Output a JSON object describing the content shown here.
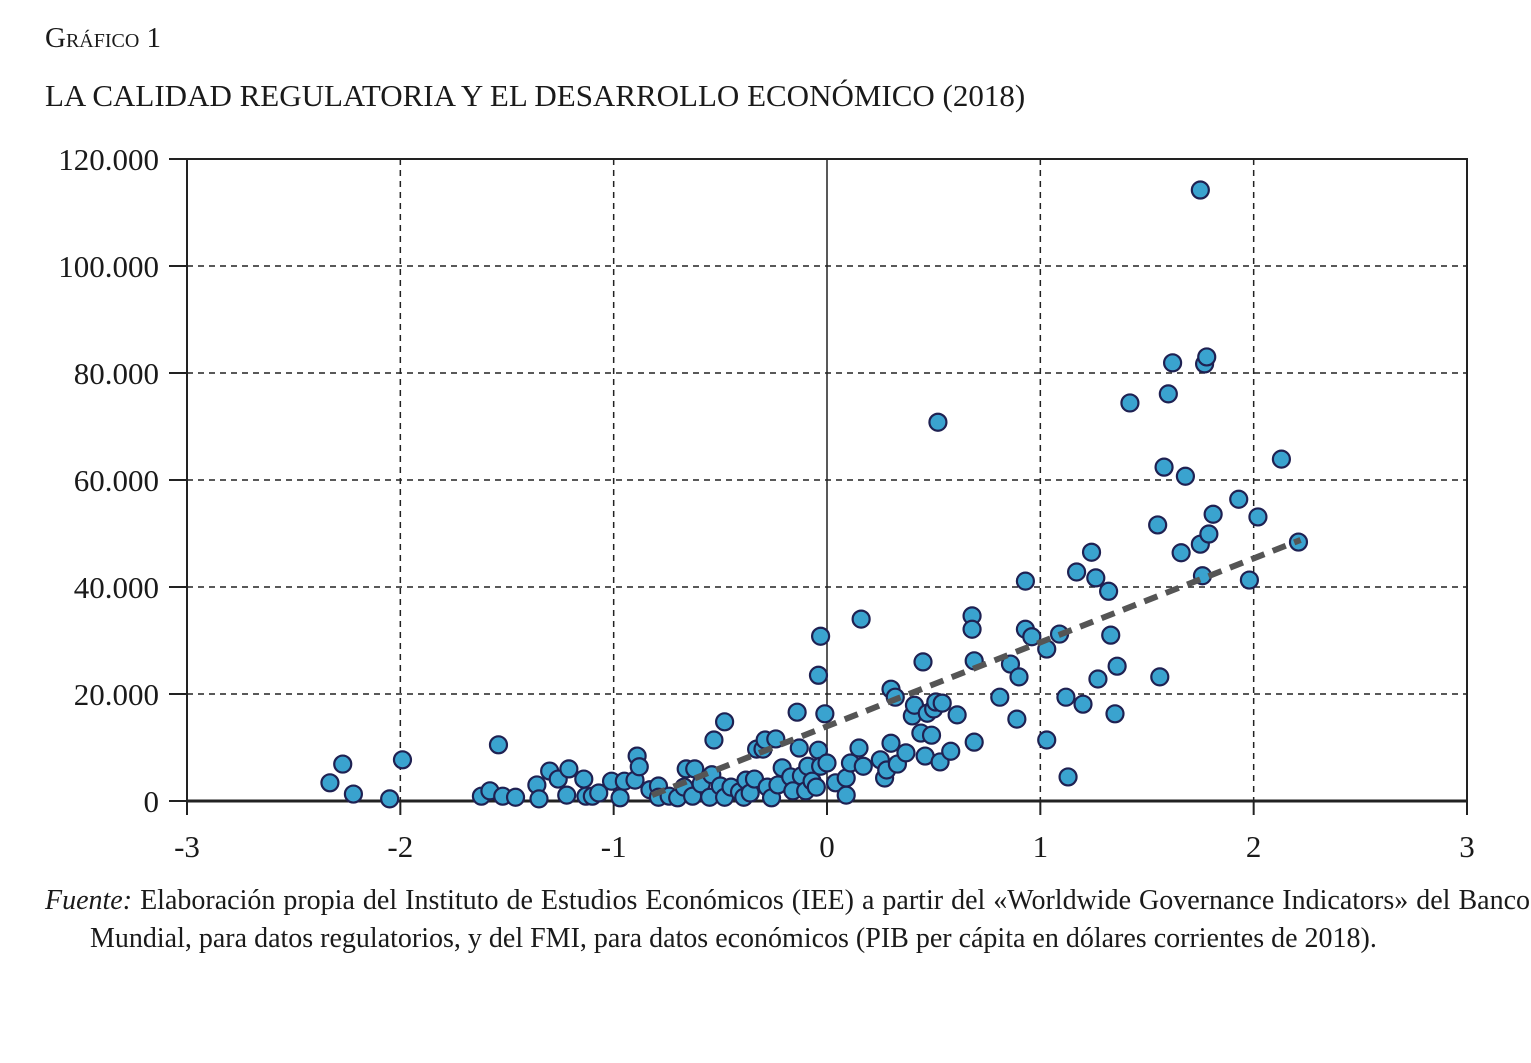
{
  "figure_label": "Gráfico 1",
  "chart_data": {
    "type": "scatter",
    "title": "LA CALIDAD REGULATORIA Y EL DESARROLLO ECONÓMICO (2018)",
    "xlabel": "",
    "ylabel": "",
    "xlim": [
      -3,
      3
    ],
    "ylim": [
      0,
      120000
    ],
    "x_ticks": [
      "-3",
      "-2",
      "-1",
      "0",
      "1",
      "2",
      "3"
    ],
    "y_ticks": [
      "0",
      "20.000",
      "40.000",
      "60.000",
      "80.000",
      "100.000",
      "120.000"
    ],
    "grid": "dashed",
    "colors": {
      "marker_fill": "#3aa3cf",
      "marker_edge": "#1f2152",
      "trend": "#555555"
    },
    "trendline": {
      "style": "dashed",
      "x": [
        -0.82,
        2.22
      ],
      "y": [
        1100,
        48800
      ]
    },
    "points": [
      [
        -2.33,
        3400
      ],
      [
        -2.27,
        6900
      ],
      [
        -2.22,
        1300
      ],
      [
        -2.05,
        400
      ],
      [
        -1.99,
        7700
      ],
      [
        -1.62,
        900
      ],
      [
        -1.58,
        1900
      ],
      [
        -1.54,
        10500
      ],
      [
        -1.52,
        900
      ],
      [
        -1.46,
        700
      ],
      [
        -1.36,
        3000
      ],
      [
        -1.35,
        400
      ],
      [
        -1.3,
        5600
      ],
      [
        -1.26,
        4100
      ],
      [
        -1.22,
        1100
      ],
      [
        -1.21,
        6000
      ],
      [
        -1.14,
        4100
      ],
      [
        -1.13,
        900
      ],
      [
        -1.1,
        900
      ],
      [
        -1.07,
        1500
      ],
      [
        -1.01,
        3700
      ],
      [
        -0.97,
        600
      ],
      [
        -0.95,
        3700
      ],
      [
        -0.9,
        3900
      ],
      [
        -0.89,
        8400
      ],
      [
        -0.88,
        6400
      ],
      [
        -0.83,
        2100
      ],
      [
        -0.79,
        2800
      ],
      [
        -0.79,
        700
      ],
      [
        -0.74,
        900
      ],
      [
        -0.7,
        600
      ],
      [
        -0.67,
        2600
      ],
      [
        -0.66,
        6000
      ],
      [
        -0.63,
        900
      ],
      [
        -0.62,
        6000
      ],
      [
        -0.59,
        3200
      ],
      [
        -0.55,
        700
      ],
      [
        -0.54,
        4900
      ],
      [
        -0.53,
        11400
      ],
      [
        -0.5,
        2800
      ],
      [
        -0.48,
        700
      ],
      [
        -0.48,
        14800
      ],
      [
        -0.45,
        2600
      ],
      [
        -0.41,
        1700
      ],
      [
        -0.39,
        700
      ],
      [
        -0.38,
        3900
      ],
      [
        -0.36,
        1500
      ],
      [
        -0.34,
        4100
      ],
      [
        -0.33,
        9700
      ],
      [
        -0.3,
        9700
      ],
      [
        -0.29,
        11400
      ],
      [
        -0.28,
        2600
      ],
      [
        -0.26,
        600
      ],
      [
        -0.24,
        11600
      ],
      [
        -0.23,
        3000
      ],
      [
        -0.21,
        6200
      ],
      [
        -0.17,
        4500
      ],
      [
        -0.16,
        1900
      ],
      [
        -0.14,
        16600
      ],
      [
        -0.13,
        9900
      ],
      [
        -0.12,
        4700
      ],
      [
        -0.1,
        1900
      ],
      [
        -0.09,
        6500
      ],
      [
        -0.07,
        3700
      ],
      [
        -0.05,
        2600
      ],
      [
        -0.04,
        23500
      ],
      [
        -0.04,
        9500
      ],
      [
        -0.03,
        6500
      ],
      [
        -0.03,
        30800
      ],
      [
        -0.01,
        16300
      ],
      [
        0.0,
        7100
      ],
      [
        0.04,
        3400
      ],
      [
        0.09,
        1100
      ],
      [
        0.09,
        4300
      ],
      [
        0.11,
        7100
      ],
      [
        0.15,
        9900
      ],
      [
        0.16,
        34000
      ],
      [
        0.17,
        6500
      ],
      [
        0.25,
        7700
      ],
      [
        0.27,
        4300
      ],
      [
        0.28,
        5800
      ],
      [
        0.3,
        10800
      ],
      [
        0.3,
        20900
      ],
      [
        0.32,
        19400
      ],
      [
        0.33,
        6900
      ],
      [
        0.37,
        9000
      ],
      [
        0.4,
        15900
      ],
      [
        0.41,
        17900
      ],
      [
        0.44,
        12700
      ],
      [
        0.45,
        26000
      ],
      [
        0.46,
        8400
      ],
      [
        0.47,
        16400
      ],
      [
        0.49,
        12300
      ],
      [
        0.5,
        17200
      ],
      [
        0.51,
        18500
      ],
      [
        0.52,
        70800
      ],
      [
        0.53,
        7300
      ],
      [
        0.54,
        18300
      ],
      [
        0.58,
        9300
      ],
      [
        0.61,
        16100
      ],
      [
        0.68,
        34600
      ],
      [
        0.68,
        32100
      ],
      [
        0.69,
        11000
      ],
      [
        0.69,
        26200
      ],
      [
        0.81,
        19400
      ],
      [
        0.86,
        25600
      ],
      [
        0.89,
        15300
      ],
      [
        0.9,
        23200
      ],
      [
        0.93,
        41100
      ],
      [
        0.93,
        32100
      ],
      [
        0.96,
        30700
      ],
      [
        1.03,
        28400
      ],
      [
        1.03,
        11400
      ],
      [
        1.09,
        31200
      ],
      [
        1.12,
        19400
      ],
      [
        1.13,
        4500
      ],
      [
        1.17,
        42800
      ],
      [
        1.2,
        18100
      ],
      [
        1.24,
        46500
      ],
      [
        1.26,
        41700
      ],
      [
        1.27,
        22800
      ],
      [
        1.32,
        39200
      ],
      [
        1.33,
        31000
      ],
      [
        1.35,
        16300
      ],
      [
        1.36,
        25200
      ],
      [
        1.42,
        74400
      ],
      [
        1.55,
        51600
      ],
      [
        1.56,
        23200
      ],
      [
        1.58,
        62400
      ],
      [
        1.6,
        76100
      ],
      [
        1.62,
        81900
      ],
      [
        1.66,
        46400
      ],
      [
        1.68,
        60700
      ],
      [
        1.75,
        114200
      ],
      [
        1.75,
        48000
      ],
      [
        1.76,
        42100
      ],
      [
        1.77,
        81700
      ],
      [
        1.78,
        83000
      ],
      [
        1.79,
        49900
      ],
      [
        1.81,
        53600
      ],
      [
        1.93,
        56400
      ],
      [
        1.98,
        41300
      ],
      [
        2.02,
        53100
      ],
      [
        2.13,
        63900
      ],
      [
        2.21,
        48400
      ]
    ]
  },
  "source": {
    "label": "Fuente:",
    "text": "Elaboración propia del Instituto de Estudios Económicos (IEE) a partir del «Worldwide Governance Indicators» del Banco Mundial, para datos regulatorios, y del FMI, para datos económicos (PIB per cápita en dólares corrientes de 2018)."
  }
}
